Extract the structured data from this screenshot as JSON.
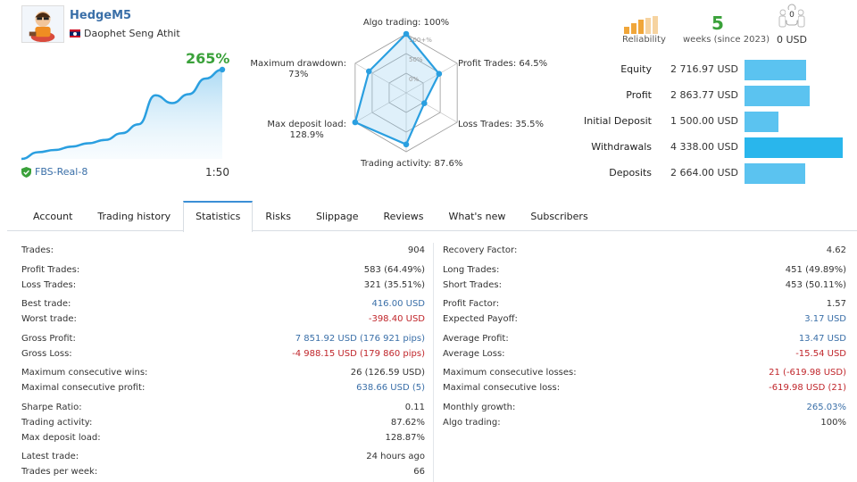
{
  "profile": {
    "name": "HedgeM5",
    "owner": "Daophet Seng Athit",
    "server": "FBS-Real-8",
    "leverage": "1:50",
    "growth": "265%"
  },
  "growth_chart": {
    "type": "area",
    "points": [
      0,
      6,
      8,
      11,
      14,
      17,
      23,
      31,
      57,
      50,
      58,
      72,
      80
    ]
  },
  "radar": {
    "scale_labels": [
      "100+%",
      "50%",
      "0%"
    ],
    "axes": [
      {
        "label": "Algo trading: 100%",
        "value": 100
      },
      {
        "label": "Profit Trades: 64.5%",
        "value": 64.5
      },
      {
        "label": "Loss Trades: 35.5%",
        "value": 35.5
      },
      {
        "label": "Trading activity: 87.6%",
        "value": 87.6
      },
      {
        "label": "Max deposit load:",
        "label2": "128.9%",
        "value": 100
      },
      {
        "label": "Maximum drawdown:",
        "label2": "73%",
        "value": 73
      }
    ]
  },
  "header_stats": {
    "reliability_label": "Reliability",
    "weeks_value": "5",
    "weeks_label": "weeks (since 2023)",
    "subscribers_count": "0",
    "subscribers_value": "0 USD"
  },
  "summary": [
    {
      "label": "Equity",
      "value": "2 716.97 USD",
      "amount": 2716.97
    },
    {
      "label": "Profit",
      "value": "2 863.77 USD",
      "amount": 2863.77
    },
    {
      "label": "Initial Deposit",
      "value": "1 500.00 USD",
      "amount": 1500.0
    },
    {
      "label": "Withdrawals",
      "value": "4 338.00 USD",
      "amount": 4338.0
    },
    {
      "label": "Deposits",
      "value": "2 664.00 USD",
      "amount": 2664.0
    }
  ],
  "tabs": [
    {
      "label": "Account",
      "active": false
    },
    {
      "label": "Trading history",
      "active": false
    },
    {
      "label": "Statistics",
      "active": true
    },
    {
      "label": "Risks",
      "active": false
    },
    {
      "label": "Slippage",
      "active": false
    },
    {
      "label": "Reviews",
      "active": false
    },
    {
      "label": "What's new",
      "active": false
    },
    {
      "label": "Subscribers",
      "active": false
    }
  ],
  "stats_left": [
    {
      "label": "Trades:",
      "value": "904"
    },
    {
      "gap": true
    },
    {
      "label": "Profit Trades:",
      "value": "583 (64.49%)"
    },
    {
      "label": "Loss Trades:",
      "value": "321 (35.51%)"
    },
    {
      "gap": true
    },
    {
      "label": "Best trade:",
      "value": "416.00 USD",
      "tone": "blue"
    },
    {
      "label": "Worst trade:",
      "value": "-398.40 USD",
      "tone": "red"
    },
    {
      "gap": true
    },
    {
      "label": "Gross Profit:",
      "value": "7 851.92 USD (176 921 pips)",
      "tone": "blue"
    },
    {
      "label": "Gross Loss:",
      "value": "-4 988.15 USD (179 860 pips)",
      "tone": "red"
    },
    {
      "gap": true
    },
    {
      "label": "Maximum consecutive wins:",
      "value": "26 (126.59 USD)"
    },
    {
      "label": "Maximal consecutive profit:",
      "value": "638.66 USD (5)",
      "tone": "blue"
    },
    {
      "gap": true
    },
    {
      "label": "Sharpe Ratio:",
      "value": "0.11"
    },
    {
      "label": "Trading activity:",
      "value": "87.62%"
    },
    {
      "label": "Max deposit load:",
      "value": "128.87%"
    },
    {
      "gap": true
    },
    {
      "label": "Latest trade:",
      "value": "24 hours ago"
    },
    {
      "label": "Trades per week:",
      "value": "66"
    }
  ],
  "stats_right": [
    {
      "label": "Recovery Factor:",
      "value": "4.62"
    },
    {
      "gap": true
    },
    {
      "label": "Long Trades:",
      "value": "451 (49.89%)"
    },
    {
      "label": "Short Trades:",
      "value": "453 (50.11%)"
    },
    {
      "gap": true
    },
    {
      "label": "Profit Factor:",
      "value": "1.57"
    },
    {
      "label": "Expected Payoff:",
      "value": "3.17 USD",
      "tone": "blue"
    },
    {
      "gap": true
    },
    {
      "label": "Average Profit:",
      "value": "13.47 USD",
      "tone": "blue"
    },
    {
      "label": "Average Loss:",
      "value": "-15.54 USD",
      "tone": "red"
    },
    {
      "gap": true
    },
    {
      "label": "Maximum consecutive losses:",
      "value": "21 (-619.98 USD)",
      "tone": "red"
    },
    {
      "label": "Maximal consecutive loss:",
      "value": "-619.98 USD (21)",
      "tone": "red"
    },
    {
      "gap": true
    },
    {
      "label": "Monthly growth:",
      "value": "265.03%",
      "tone": "blue"
    },
    {
      "label": "Algo trading:",
      "value": "100%"
    }
  ],
  "colors": {
    "accent": "#3a6fa8",
    "positive": "#3aa13a",
    "negative": "#c0262b",
    "bar": "#5bc3f0",
    "radar_line": "#2a9fe0"
  }
}
